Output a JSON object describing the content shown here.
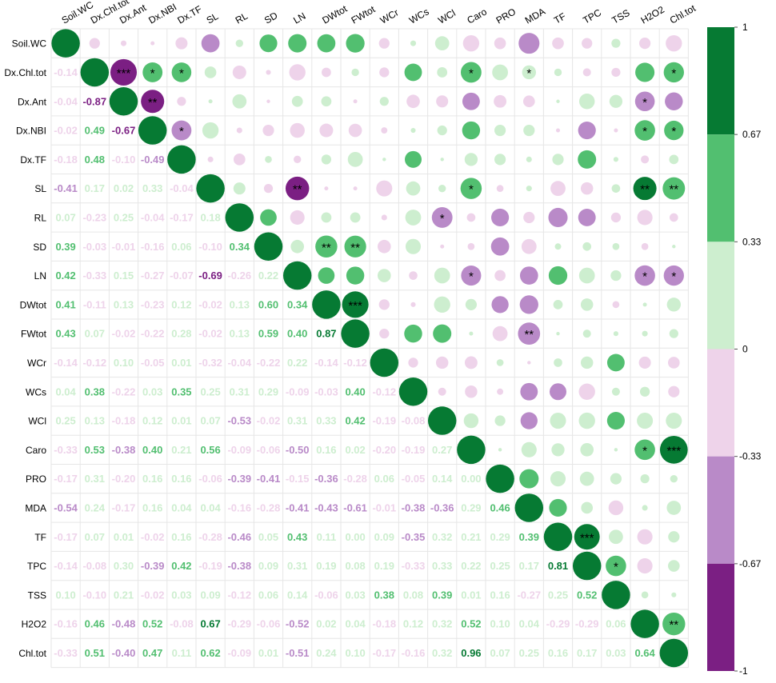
{
  "chart_data": {
    "type": "heatmap",
    "variables": [
      "Soil.WC",
      "Dx.Chl.tot",
      "Dx.Ant",
      "Dx.NBI",
      "Dx.TF",
      "SL",
      "RL",
      "SD",
      "LN",
      "DWtot",
      "FWtot",
      "WCr",
      "WCs",
      "WCl",
      "Caro",
      "PRO",
      "MDA",
      "TF",
      "TPC",
      "TSS",
      "H2O2",
      "Chl.tot"
    ],
    "matrix": [
      [
        1,
        -0.14,
        -0.04,
        -0.02,
        -0.18,
        -0.41,
        0.07,
        0.39,
        0.42,
        0.41,
        0.43,
        -0.14,
        0.04,
        0.25,
        -0.33,
        -0.17,
        -0.54,
        -0.17,
        -0.14,
        0.1,
        -0.16,
        -0.33
      ],
      [
        -0.14,
        1,
        -0.87,
        0.49,
        0.48,
        0.17,
        -0.23,
        -0.03,
        -0.33,
        -0.11,
        0.07,
        -0.12,
        0.38,
        0.13,
        0.53,
        0.31,
        0.24,
        0.07,
        -0.08,
        -0.1,
        0.46,
        0.51
      ],
      [
        -0.04,
        -0.87,
        1,
        -0.67,
        -0.1,
        0.02,
        0.25,
        -0.01,
        0.15,
        0.13,
        -0.02,
        0.1,
        -0.22,
        -0.18,
        -0.38,
        -0.2,
        -0.17,
        0.01,
        0.3,
        0.21,
        -0.48,
        -0.4
      ],
      [
        -0.02,
        0.49,
        -0.67,
        1,
        -0.49,
        0.33,
        -0.04,
        -0.16,
        -0.27,
        -0.23,
        -0.22,
        -0.05,
        0.03,
        0.12,
        0.4,
        0.16,
        0.16,
        -0.02,
        -0.39,
        -0.02,
        0.52,
        0.47
      ],
      [
        -0.18,
        0.48,
        -0.1,
        -0.49,
        1,
        -0.04,
        -0.17,
        0.06,
        -0.07,
        0.12,
        0.28,
        0.01,
        0.35,
        0.01,
        0.21,
        0.16,
        0.04,
        0.16,
        0.42,
        0.03,
        -0.08,
        0.11
      ],
      [
        -0.41,
        0.17,
        0.02,
        0.33,
        -0.04,
        1,
        0.18,
        -0.1,
        -0.69,
        -0.02,
        -0.02,
        -0.32,
        0.25,
        0.07,
        0.56,
        -0.06,
        0.04,
        -0.28,
        -0.19,
        0.09,
        0.67,
        0.62
      ],
      [
        0.07,
        -0.23,
        0.25,
        -0.04,
        -0.17,
        0.18,
        1,
        0.34,
        -0.26,
        0.13,
        0.13,
        -0.04,
        0.31,
        -0.53,
        -0.09,
        -0.39,
        -0.16,
        -0.46,
        -0.38,
        -0.12,
        -0.29,
        -0.09
      ],
      [
        0.39,
        -0.03,
        -0.01,
        -0.16,
        0.06,
        -0.1,
        0.34,
        1,
        0.22,
        0.6,
        0.59,
        -0.22,
        0.29,
        -0.02,
        -0.06,
        -0.41,
        -0.28,
        0.05,
        0.09,
        0.06,
        -0.06,
        0.01
      ],
      [
        0.42,
        -0.33,
        0.15,
        -0.27,
        -0.07,
        -0.69,
        -0.26,
        0.22,
        1,
        0.34,
        0.4,
        0.22,
        -0.09,
        0.31,
        -0.5,
        -0.15,
        -0.41,
        0.43,
        0.31,
        0.14,
        -0.52,
        -0.51
      ],
      [
        0.41,
        -0.11,
        0.13,
        -0.23,
        0.12,
        -0.02,
        0.13,
        0.6,
        0.34,
        1,
        0.87,
        -0.14,
        -0.03,
        0.33,
        0.16,
        -0.36,
        -0.43,
        0.11,
        0.19,
        -0.06,
        0.02,
        0.24
      ],
      [
        0.43,
        0.07,
        -0.02,
        -0.22,
        0.28,
        -0.02,
        0.13,
        0.59,
        0.4,
        0.87,
        1,
        -0.12,
        0.4,
        0.42,
        0.02,
        -0.28,
        -0.61,
        0.0,
        0.08,
        0.03,
        0.04,
        0.1
      ],
      [
        -0.14,
        -0.12,
        0.1,
        -0.05,
        0.01,
        -0.32,
        -0.04,
        -0.22,
        0.22,
        -0.14,
        -0.12,
        1,
        -0.12,
        -0.19,
        -0.2,
        0.06,
        -0.01,
        0.09,
        0.19,
        0.38,
        -0.18,
        -0.17
      ],
      [
        0.04,
        0.38,
        -0.22,
        0.03,
        0.35,
        0.25,
        0.31,
        0.29,
        -0.09,
        -0.03,
        0.4,
        -0.12,
        1,
        -0.08,
        -0.19,
        -0.05,
        -0.38,
        -0.35,
        -0.33,
        0.08,
        0.12,
        -0.16
      ],
      [
        0.25,
        0.13,
        -0.18,
        0.12,
        0.01,
        0.07,
        -0.53,
        -0.02,
        0.31,
        0.33,
        0.42,
        -0.19,
        -0.08,
        1,
        0.27,
        0.14,
        -0.36,
        0.32,
        0.33,
        0.39,
        0.32,
        0.32
      ],
      [
        -0.33,
        0.53,
        -0.38,
        0.4,
        0.21,
        0.56,
        -0.09,
        -0.06,
        -0.5,
        0.16,
        0.02,
        -0.2,
        -0.19,
        0.27,
        1,
        0.0,
        0.29,
        0.21,
        0.22,
        0.01,
        0.52,
        0.96
      ],
      [
        -0.17,
        0.31,
        -0.2,
        0.16,
        0.16,
        -0.06,
        -0.39,
        -0.41,
        -0.15,
        -0.36,
        -0.28,
        0.06,
        -0.05,
        0.14,
        0.0,
        1,
        0.46,
        0.29,
        0.25,
        0.16,
        0.1,
        0.07
      ],
      [
        -0.54,
        0.24,
        -0.17,
        0.16,
        0.04,
        0.04,
        -0.16,
        -0.28,
        -0.41,
        -0.43,
        -0.61,
        -0.01,
        -0.38,
        -0.36,
        0.29,
        0.46,
        1,
        0.39,
        0.17,
        -0.27,
        0.04,
        0.25
      ],
      [
        -0.17,
        0.07,
        0.01,
        -0.02,
        0.16,
        -0.28,
        -0.46,
        0.05,
        0.43,
        0.11,
        0.0,
        0.09,
        -0.35,
        0.32,
        0.21,
        0.29,
        0.39,
        1,
        0.81,
        0.25,
        -0.29,
        0.16
      ],
      [
        -0.14,
        -0.08,
        0.3,
        -0.39,
        0.42,
        -0.19,
        -0.38,
        0.09,
        0.31,
        0.19,
        0.08,
        0.19,
        -0.33,
        0.33,
        0.22,
        0.25,
        0.17,
        0.81,
        1,
        0.52,
        -0.29,
        0.17
      ],
      [
        0.1,
        -0.1,
        0.21,
        -0.02,
        0.03,
        0.09,
        -0.12,
        0.06,
        0.14,
        -0.06,
        0.03,
        0.38,
        0.08,
        0.39,
        0.01,
        0.16,
        -0.27,
        0.25,
        0.52,
        1,
        0.06,
        0.03
      ],
      [
        -0.16,
        0.46,
        -0.48,
        0.52,
        -0.08,
        0.67,
        -0.29,
        -0.06,
        -0.52,
        0.02,
        0.04,
        -0.18,
        0.12,
        0.32,
        0.52,
        0.1,
        0.04,
        -0.29,
        -0.29,
        0.06,
        1,
        0.64
      ],
      [
        -0.33,
        0.51,
        -0.4,
        0.47,
        0.11,
        0.62,
        -0.09,
        0.01,
        -0.51,
        0.24,
        0.1,
        -0.17,
        -0.16,
        0.32,
        0.96,
        0.07,
        0.25,
        0.16,
        0.17,
        0.03,
        0.64,
        1
      ]
    ],
    "significance": [
      [
        1,
        16,
        "*"
      ],
      [
        1,
        2,
        "***"
      ],
      [
        1,
        3,
        "*"
      ],
      [
        1,
        4,
        "*"
      ],
      [
        1,
        14,
        "*"
      ],
      [
        1,
        21,
        "*"
      ],
      [
        2,
        3,
        "**"
      ],
      [
        2,
        20,
        "*"
      ],
      [
        3,
        4,
        "*"
      ],
      [
        3,
        20,
        "*"
      ],
      [
        3,
        21,
        "*"
      ],
      [
        5,
        8,
        "**"
      ],
      [
        5,
        14,
        "*"
      ],
      [
        5,
        20,
        "**"
      ],
      [
        5,
        21,
        "**"
      ],
      [
        6,
        13,
        "*"
      ],
      [
        7,
        9,
        "**"
      ],
      [
        7,
        10,
        "**"
      ],
      [
        8,
        14,
        "*"
      ],
      [
        8,
        20,
        "*"
      ],
      [
        8,
        21,
        "*"
      ],
      [
        9,
        10,
        "***"
      ],
      [
        10,
        16,
        "**"
      ],
      [
        14,
        20,
        "*"
      ],
      [
        14,
        21,
        "***"
      ],
      [
        17,
        18,
        "***"
      ],
      [
        18,
        19,
        "*"
      ],
      [
        20,
        21,
        "**"
      ]
    ],
    "legend": {
      "colors": [
        "#7B1F83",
        "#B98AC8",
        "#EED3EA",
        "#CDEECF",
        "#52BF70",
        "#067A33"
      ],
      "ticks": [
        "1",
        "0.67",
        "0.33",
        "0",
        "-0.33",
        "-0.67",
        "-1"
      ],
      "placement": "right"
    }
  }
}
